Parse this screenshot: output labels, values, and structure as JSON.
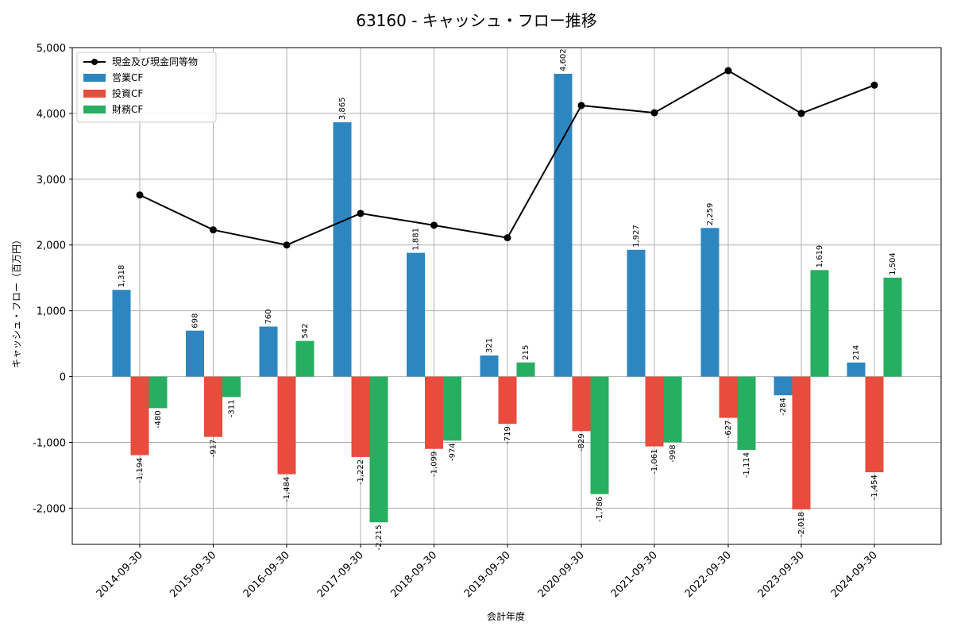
{
  "chart_data": {
    "type": "bar",
    "title": "63160 - キャッシュ・フロー推移",
    "xlabel": "会計年度",
    "ylabel": "キャッシュ・フロー（百万円）",
    "ylim": [
      -2550,
      5000
    ],
    "yticks": [
      -2000,
      -1000,
      0,
      1000,
      2000,
      3000,
      4000,
      5000
    ],
    "ytick_labels": [
      "-2,000",
      "-1,000",
      "0",
      "1,000",
      "2,000",
      "3,000",
      "4,000",
      "5,000"
    ],
    "grid": true,
    "legend_position": "top-left",
    "categories": [
      "2014-09-30",
      "2015-09-30",
      "2016-09-30",
      "2017-09-30",
      "2018-09-30",
      "2019-09-30",
      "2020-09-30",
      "2021-09-30",
      "2022-09-30",
      "2023-09-30",
      "2024-09-30"
    ],
    "series": [
      {
        "name": "営業CF",
        "type": "bar",
        "color": "#2e86c1",
        "values": [
          1318,
          698,
          760,
          3865,
          1881,
          321,
          4602,
          1927,
          2259,
          -284,
          214
        ],
        "labels": [
          "1,318",
          "698",
          "760",
          "3,865",
          "1,881",
          "321",
          "4,602",
          "1,927",
          "2,259",
          "-284",
          "214"
        ]
      },
      {
        "name": "投資CF",
        "type": "bar",
        "color": "#e74c3c",
        "values": [
          -1194,
          -917,
          -1484,
          -1222,
          -1099,
          -719,
          -829,
          -1061,
          -627,
          -2018,
          -1454
        ],
        "labels": [
          "-1,194",
          "-917",
          "-1,484",
          "-1,222",
          "-1,099",
          "-719",
          "-829",
          "-1,061",
          "-627",
          "-2,018",
          "-1,454"
        ]
      },
      {
        "name": "財務CF",
        "type": "bar",
        "color": "#27ae60",
        "values": [
          -480,
          -311,
          542,
          -2215,
          -974,
          215,
          -1786,
          -998,
          -1114,
          1619,
          1504
        ],
        "labels": [
          "-480",
          "-311",
          "542",
          "-2,215",
          "-974",
          "215",
          "-1,786",
          "-998",
          "-1,114",
          "1,619",
          "1,504"
        ]
      },
      {
        "name": "現金及び現金同等物",
        "type": "line",
        "color": "#000000",
        "values": [
          2760,
          2230,
          2000,
          2480,
          2300,
          2110,
          4120,
          4010,
          4650,
          4000,
          4430
        ]
      }
    ]
  }
}
